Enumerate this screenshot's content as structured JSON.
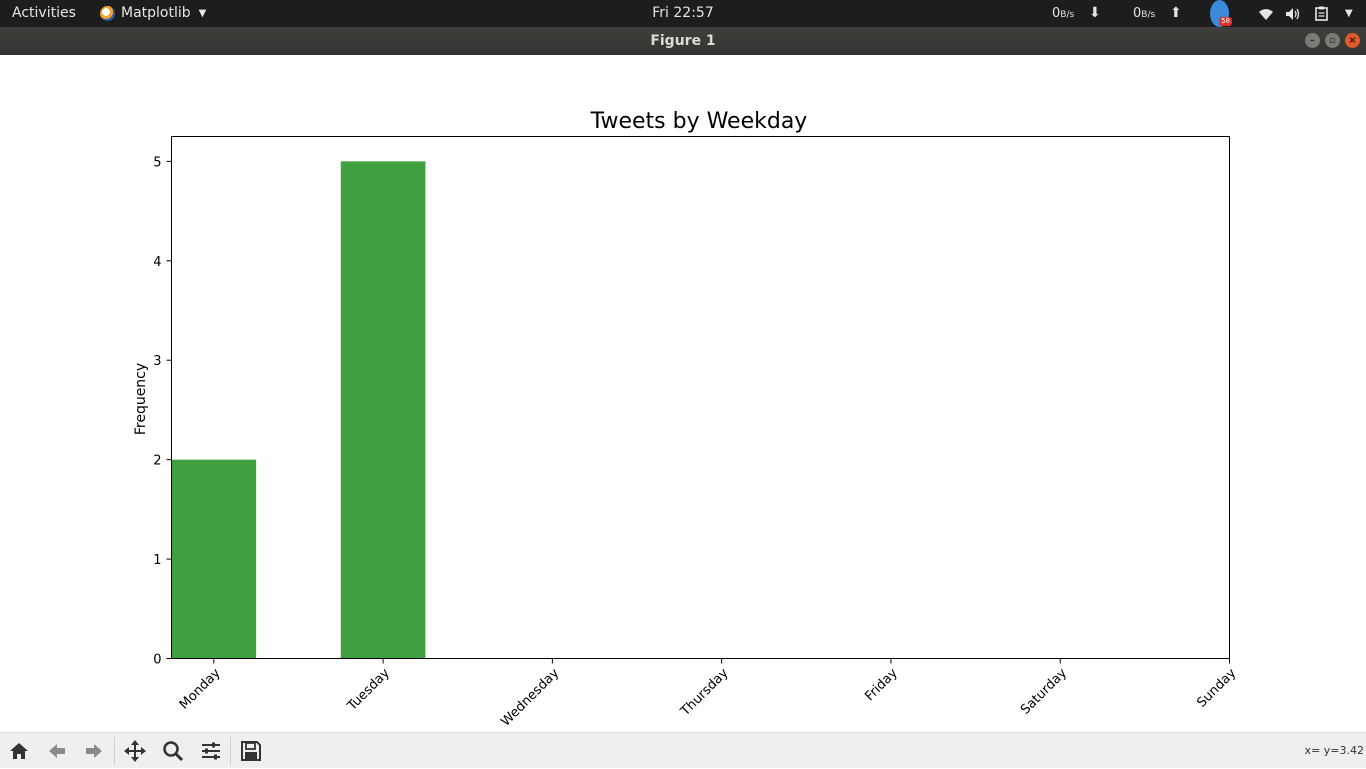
{
  "topbar": {
    "activities": "Activities",
    "app_name": "Matplotlib",
    "clock": "Fri 22:57",
    "net_down_value": "0",
    "net_down_unit": "B/s",
    "net_down_arrow": "⬇",
    "net_up_value": "0",
    "net_up_unit": "B/s",
    "net_up_arrow": "⬆",
    "notification_badge": "58",
    "icons": [
      "app-icon",
      "download-arrow-icon",
      "upload-arrow-icon",
      "notification-icon",
      "wifi-icon",
      "volume-icon",
      "clipboard-icon",
      "system-menu-caret-icon"
    ]
  },
  "window": {
    "title": "Figure 1",
    "buttons": [
      "minimize",
      "maximize",
      "close"
    ]
  },
  "toolbar": {
    "tools": [
      "home-icon",
      "back-icon",
      "forward-icon",
      "pan-icon",
      "zoom-icon",
      "configure-subplots-icon",
      "save-icon"
    ],
    "coords": "x= y=3.42"
  },
  "chart_data": {
    "type": "bar",
    "title": "Tweets by Weekday",
    "xlabel": "",
    "ylabel": "Frequency",
    "categories": [
      "Monday",
      "Tuesday",
      "Wednesday",
      "Thursday",
      "Friday",
      "Saturday",
      "Sunday"
    ],
    "values": [
      2,
      5,
      0,
      0,
      0,
      0,
      0
    ],
    "ylim": [
      0,
      5.25
    ],
    "yticks": [
      0,
      1,
      2,
      3,
      4,
      5
    ],
    "bar_color": "#40a040",
    "grid": false,
    "legend": "none"
  }
}
